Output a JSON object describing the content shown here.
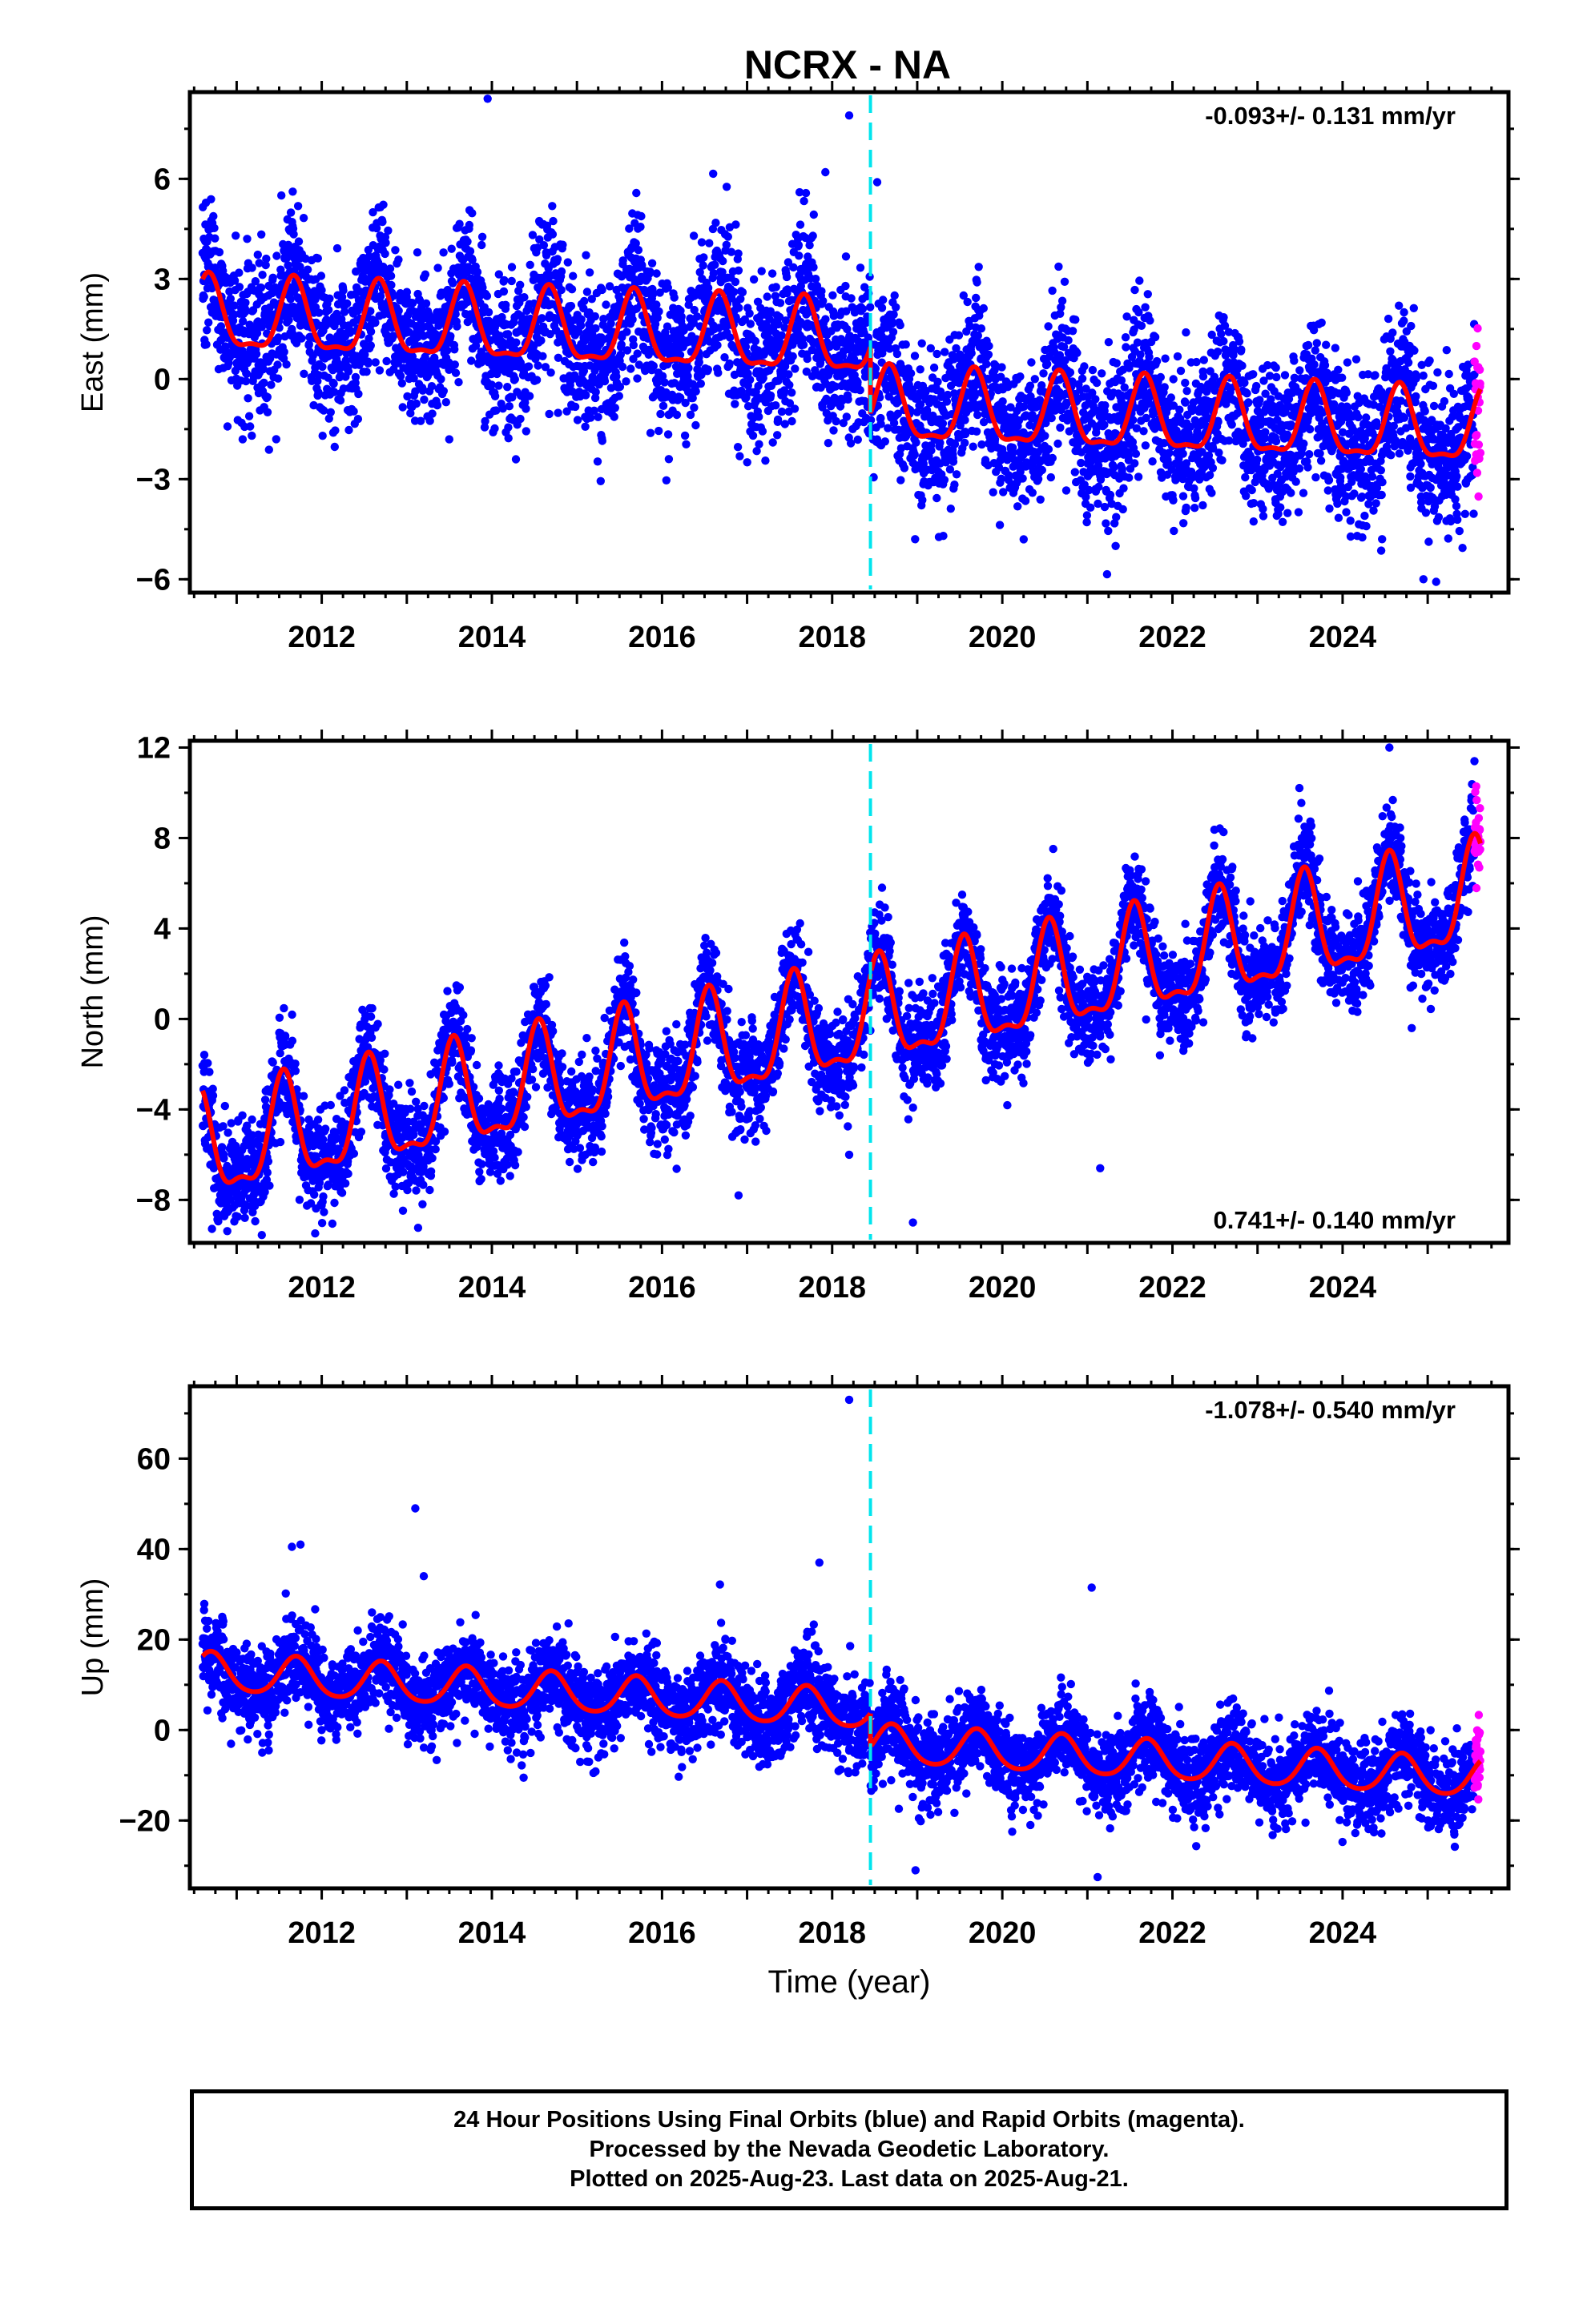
{
  "title": "NCRX - NA",
  "colors": {
    "final_orbits": "#0000ff",
    "rapid_orbits": "#ff00ff",
    "model": "#ff0000",
    "offset_line": "#00e5ee",
    "frame": "#000000"
  },
  "chart_data": [
    {
      "type": "scatter",
      "component": "East",
      "ylabel": "East (mm)",
      "xlabel": "",
      "xlim": [
        2010.45,
        2025.95
      ],
      "ylim": [
        -6.4,
        8.6
      ],
      "yticks": [
        -6,
        -3,
        0,
        3,
        6
      ],
      "ytick_labels": [
        "−6",
        "−3",
        "0",
        "3",
        "6"
      ],
      "xticks": [
        2012,
        2014,
        2016,
        2018,
        2020,
        2022,
        2024
      ],
      "xtick_labels": [
        "2012",
        "2014",
        "2016",
        "2018",
        "2020",
        "2022",
        "2024"
      ],
      "velocity_label": "-0.093+/- 0.131 mm/yr",
      "velocity_label_position": "top-right",
      "offset_epoch": 2018.45,
      "data_start": 2010.6,
      "data_end": 2025.62,
      "rapid_start": 2025.55,
      "model": {
        "mean_before": 1.45,
        "mean_after": -1.25,
        "rate": -0.093,
        "annual_amplitude": 1.05,
        "annual_peak": 0.67,
        "semiannual_amplitude": 0.35,
        "noise_sigma": 1.15
      },
      "outliers": [
        [
          2013.95,
          8.4
        ],
        [
          2018.2,
          7.9
        ],
        [
          2018.53,
          5.9
        ],
        [
          2017.92,
          6.2
        ],
        [
          2016.08,
          -2.4
        ],
        [
          2024.95,
          -6.0
        ]
      ]
    },
    {
      "type": "scatter",
      "component": "North",
      "ylabel": "North (mm)",
      "xlabel": "",
      "xlim": [
        2010.45,
        2025.95
      ],
      "ylim": [
        -9.9,
        12.3
      ],
      "yticks": [
        -8,
        -4,
        0,
        4,
        8,
        12
      ],
      "ytick_labels": [
        "−8",
        "−4",
        "0",
        "4",
        "8",
        "12"
      ],
      "xticks": [
        2012,
        2014,
        2016,
        2018,
        2020,
        2022,
        2024
      ],
      "xtick_labels": [
        "2012",
        "2014",
        "2016",
        "2018",
        "2020",
        "2022",
        "2024"
      ],
      "velocity_label": "0.741+/- 0.140 mm/yr",
      "velocity_label_position": "bottom-right",
      "offset_epoch": 2018.45,
      "data_start": 2010.6,
      "data_end": 2025.62,
      "rapid_start": 2025.55,
      "model": {
        "mean_before": -3.0,
        "mean_after": 2.6,
        "rate": 0.741,
        "annual_amplitude": 2.2,
        "annual_peak": 0.55,
        "semiannual_amplitude": 0.8,
        "noise_sigma": 1.1
      },
      "outliers": [
        [
          2018.2,
          -6.0
        ],
        [
          2018.95,
          -9.0
        ],
        [
          2021.15,
          -6.6
        ],
        [
          2024.55,
          12.0
        ],
        [
          2025.55,
          11.4
        ],
        [
          2016.9,
          -7.8
        ]
      ]
    },
    {
      "type": "scatter",
      "component": "Up",
      "ylabel": "Up (mm)",
      "xlabel": "Time (year)",
      "xlim": [
        2010.45,
        2025.95
      ],
      "ylim": [
        -35,
        76
      ],
      "yticks": [
        -20,
        0,
        20,
        40,
        60
      ],
      "ytick_labels": [
        "−20",
        "0",
        "20",
        "40",
        "60"
      ],
      "xticks": [
        2012,
        2014,
        2016,
        2018,
        2020,
        2022,
        2024
      ],
      "xtick_labels": [
        "2012",
        "2014",
        "2016",
        "2018",
        "2020",
        "2022",
        "2024"
      ],
      "velocity_label": "-1.078+/- 0.540 mm/yr",
      "velocity_label_position": "top-right",
      "offset_epoch": 2018.45,
      "data_start": 2010.6,
      "data_end": 2025.62,
      "rapid_start": 2025.55,
      "model": {
        "mean_before": 8.5,
        "mean_after": -7.0,
        "rate": -1.078,
        "annual_amplitude": 4.2,
        "annual_peak": 0.7,
        "semiannual_amplitude": 0.6,
        "noise_sigma": 4.8
      },
      "outliers": [
        [
          2018.2,
          73.0
        ],
        [
          2013.1,
          49.0
        ],
        [
          2011.65,
          40.5
        ],
        [
          2011.75,
          41.0
        ],
        [
          2017.85,
          37.0
        ],
        [
          2021.05,
          31.5
        ],
        [
          2013.2,
          34.0
        ],
        [
          2018.98,
          -31.0
        ],
        [
          2021.12,
          -32.5
        ],
        [
          2011.3,
          -5.0
        ]
      ]
    }
  ],
  "footer": {
    "line1": "24 Hour Positions Using Final Orbits (blue) and Rapid Orbits (magenta).",
    "line2": "Processed by the Nevada Geodetic Laboratory.",
    "line3": "Plotted on 2025-Aug-23. Last data on 2025-Aug-21."
  }
}
